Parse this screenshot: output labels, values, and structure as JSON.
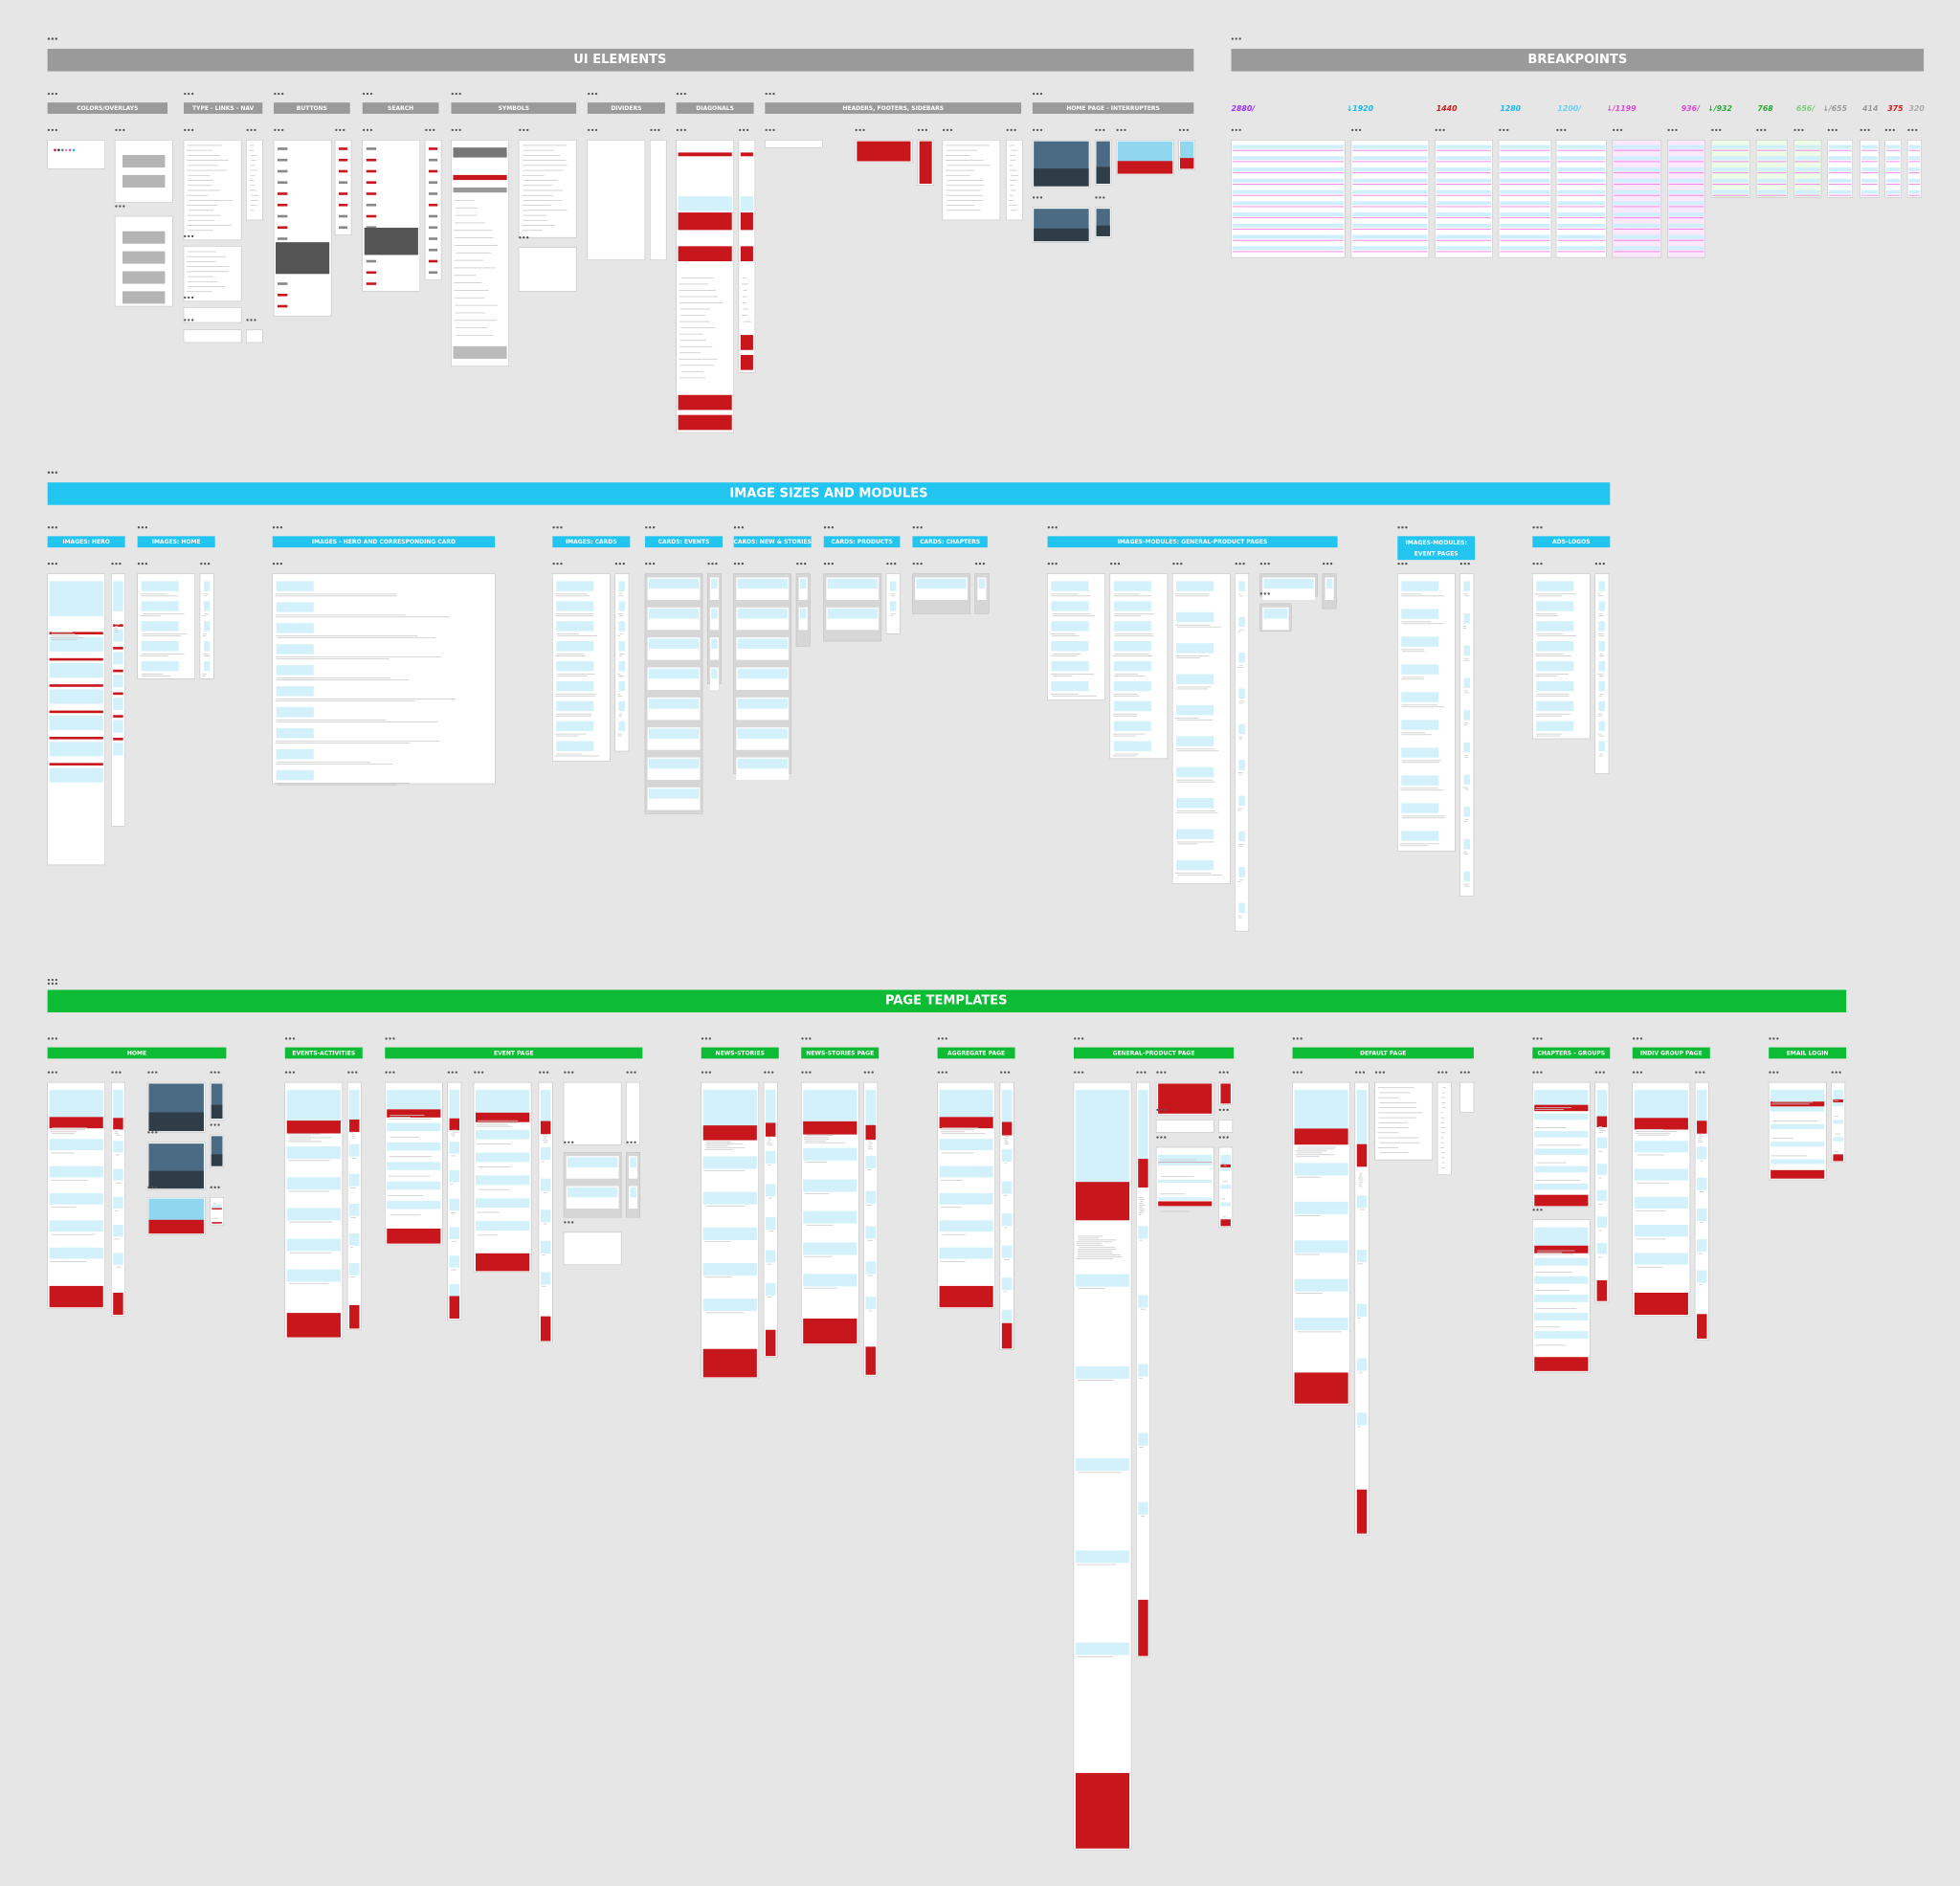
{
  "sections": [
    {
      "title": "UI ELEMENTS",
      "groups": [
        "COLORS/OVERLAYS",
        "TYPE - LINKS - NAV",
        "BUTTONS",
        "SEARCH",
        "SYMBOLS",
        "DIVIDERS",
        "DIAGONALS",
        "HEADERS, FOOTERS, SIDEBARS",
        "HOME PAGE - INTERRUPTERS"
      ]
    },
    {
      "title": "BREAKPOINTS",
      "groups": [
        "2880/",
        "↓1920",
        "1440",
        "1280",
        "1200/",
        "↓/1199",
        "936/",
        "↓/932",
        "768",
        "656/",
        "↓/655",
        "414",
        "375",
        "320"
      ]
    },
    {
      "title": "IMAGE SIZES AND MODULES",
      "groups": [
        "IMAGES: HERO",
        "IMAGES: HOME",
        "IMAGES - HERO AND CORRESPONDING CARD",
        "IMAGES: CARDS",
        "CARDS: EVENTS",
        "CARDS: NEW & STORIES",
        "CARDS: PRODUCTS",
        "CARDS: CHAPTERS",
        "IMAGES-MODULES: GENERAL-PRODUCT PAGES",
        "IMAGES-MODULES: EVENT PAGES",
        "ADS-LOGOS"
      ]
    },
    {
      "title": "PAGE TEMPLATES",
      "groups": [
        "HOME",
        "EVENTS-ACTIVITIES",
        "EVENT PAGE",
        "NEWS-STORIES",
        "NEWS-STORIES PAGE",
        "AGGREGATE PAGE",
        "GENERAL-PRODUCT PAGE",
        "DEFAULT PAGE",
        "CHAPTERS - GROUPS",
        "INDIV GROUP PAGE",
        "EMAIL LOGIN"
      ]
    }
  ]
}
